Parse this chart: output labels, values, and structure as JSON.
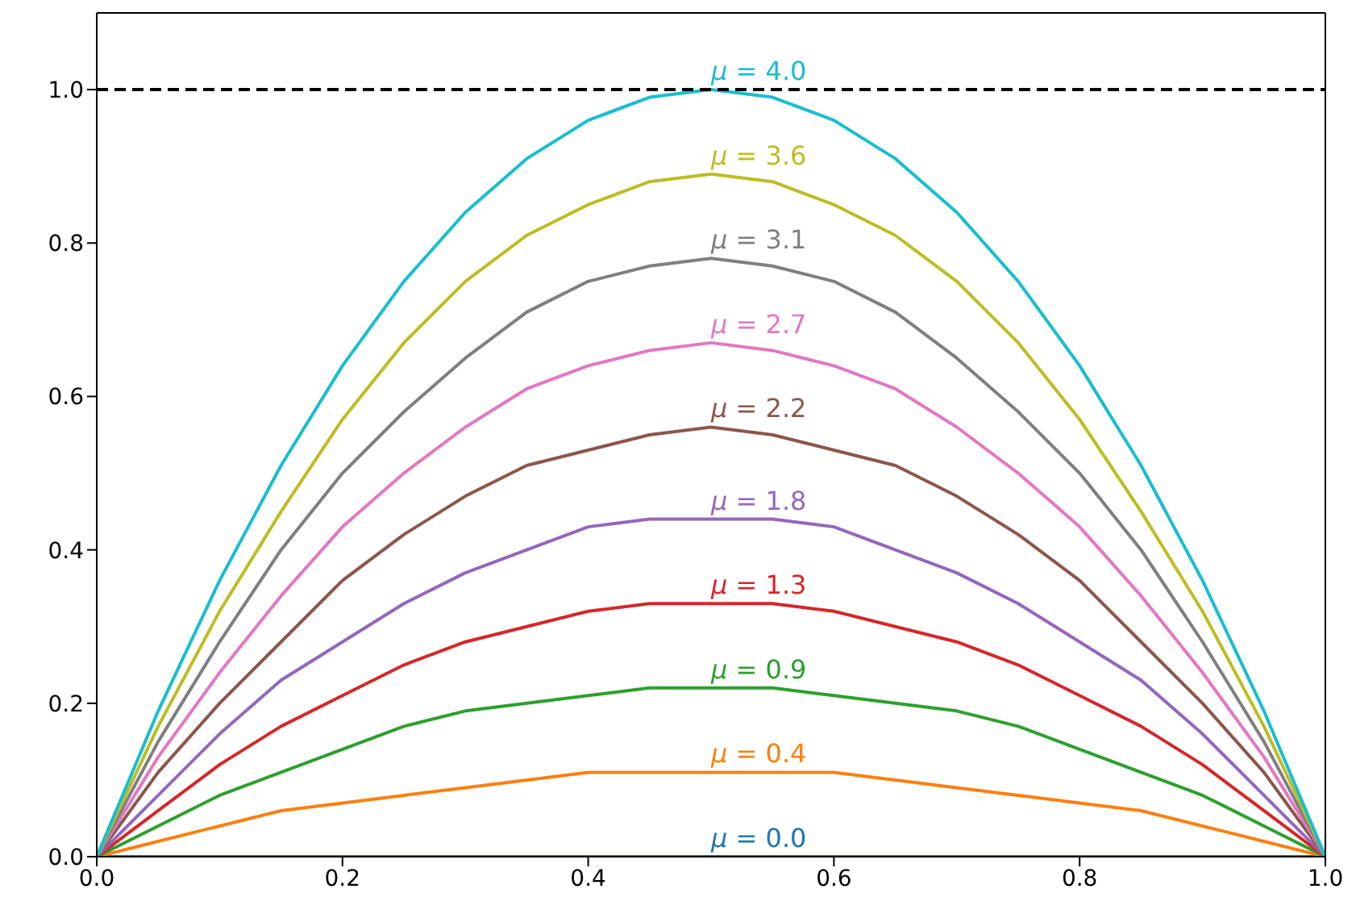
{
  "chart_data": {
    "type": "line",
    "x": [
      0,
      0.05,
      0.1,
      0.15,
      0.2,
      0.25,
      0.3,
      0.35,
      0.4,
      0.45,
      0.5,
      0.55,
      0.6,
      0.65,
      0.7,
      0.75,
      0.8,
      0.85,
      0.9,
      0.95,
      1
    ],
    "series": [
      {
        "name": "μ = 0.0",
        "color": "#1f77b4",
        "values": [
          0,
          0,
          0,
          0,
          0,
          0,
          0,
          0,
          0,
          0,
          0,
          0,
          0,
          0,
          0,
          0,
          0,
          0,
          0,
          0,
          0
        ]
      },
      {
        "name": "μ = 0.4",
        "color": "#ff7f0e",
        "values": [
          0,
          0.02,
          0.04,
          0.06,
          0.07,
          0.08,
          0.09,
          0.1,
          0.11,
          0.11,
          0.11,
          0.11,
          0.11,
          0.1,
          0.09,
          0.08,
          0.07,
          0.06,
          0.04,
          0.02,
          0
        ]
      },
      {
        "name": "μ = 0.9",
        "color": "#2ca02c",
        "values": [
          0,
          0.04,
          0.08,
          0.11,
          0.14,
          0.17,
          0.19,
          0.2,
          0.21,
          0.22,
          0.22,
          0.22,
          0.21,
          0.2,
          0.19,
          0.17,
          0.14,
          0.11,
          0.08,
          0.04,
          0
        ]
      },
      {
        "name": "μ = 1.3",
        "color": "#d62728",
        "values": [
          0,
          0.06,
          0.12,
          0.17,
          0.21,
          0.25,
          0.28,
          0.3,
          0.32,
          0.33,
          0.33,
          0.33,
          0.32,
          0.3,
          0.28,
          0.25,
          0.21,
          0.17,
          0.12,
          0.06,
          0
        ]
      },
      {
        "name": "μ = 1.8",
        "color": "#9467bd",
        "values": [
          0,
          0.08,
          0.16,
          0.23,
          0.28,
          0.33,
          0.37,
          0.4,
          0.43,
          0.44,
          0.44,
          0.44,
          0.43,
          0.4,
          0.37,
          0.33,
          0.28,
          0.23,
          0.16,
          0.08,
          0
        ]
      },
      {
        "name": "μ = 2.2",
        "color": "#8c564b",
        "values": [
          0,
          0.11,
          0.2,
          0.28,
          0.36,
          0.42,
          0.47,
          0.51,
          0.53,
          0.55,
          0.56,
          0.55,
          0.53,
          0.51,
          0.47,
          0.42,
          0.36,
          0.28,
          0.2,
          0.11,
          0
        ]
      },
      {
        "name": "μ = 2.7",
        "color": "#e377c2",
        "values": [
          0,
          0.13,
          0.24,
          0.34,
          0.43,
          0.5,
          0.56,
          0.61,
          0.64,
          0.66,
          0.67,
          0.66,
          0.64,
          0.61,
          0.56,
          0.5,
          0.43,
          0.34,
          0.24,
          0.13,
          0
        ]
      },
      {
        "name": "μ = 3.1",
        "color": "#7f7f7f",
        "values": [
          0,
          0.15,
          0.28,
          0.4,
          0.5,
          0.58,
          0.65,
          0.71,
          0.75,
          0.77,
          0.78,
          0.77,
          0.75,
          0.71,
          0.65,
          0.58,
          0.5,
          0.4,
          0.28,
          0.15,
          0
        ]
      },
      {
        "name": "μ = 3.6",
        "color": "#bcbd22",
        "values": [
          0,
          0.17,
          0.32,
          0.45,
          0.57,
          0.67,
          0.75,
          0.81,
          0.85,
          0.88,
          0.89,
          0.88,
          0.85,
          0.81,
          0.75,
          0.67,
          0.57,
          0.45,
          0.32,
          0.17,
          0
        ]
      },
      {
        "name": "μ = 4.0",
        "color": "#17becf",
        "values": [
          0,
          0.19,
          0.36,
          0.51,
          0.64,
          0.75,
          0.84,
          0.91,
          0.96,
          0.99,
          1,
          0.99,
          0.96,
          0.91,
          0.84,
          0.75,
          0.64,
          0.51,
          0.36,
          0.19,
          0
        ]
      }
    ],
    "xlim": [
      0,
      1
    ],
    "xticks": [
      {
        "value": 0,
        "label": "0.0"
      },
      {
        "value": 0.2,
        "label": "0.2"
      },
      {
        "value": 0.4,
        "label": "0.4"
      },
      {
        "value": 0.6,
        "label": "0.6"
      },
      {
        "value": 0.8,
        "label": "0.8"
      },
      {
        "value": 1,
        "label": "1.0"
      }
    ],
    "ylim": [
      0,
      1.1
    ],
    "yticks": [
      {
        "value": 0,
        "label": "0.0"
      },
      {
        "value": 0.2,
        "label": "0.2"
      },
      {
        "value": 0.4,
        "label": "0.4"
      },
      {
        "value": 0.6,
        "label": "0.6"
      },
      {
        "value": 0.8,
        "label": "0.8"
      },
      {
        "value": 1,
        "label": "1.0"
      }
    ],
    "ref_lines": [
      {
        "axis": "y",
        "value": 1,
        "color": "#000000",
        "line_style": "dashed"
      }
    ],
    "marker": "none",
    "line_style": "solid",
    "grid": false,
    "legend": false
  }
}
